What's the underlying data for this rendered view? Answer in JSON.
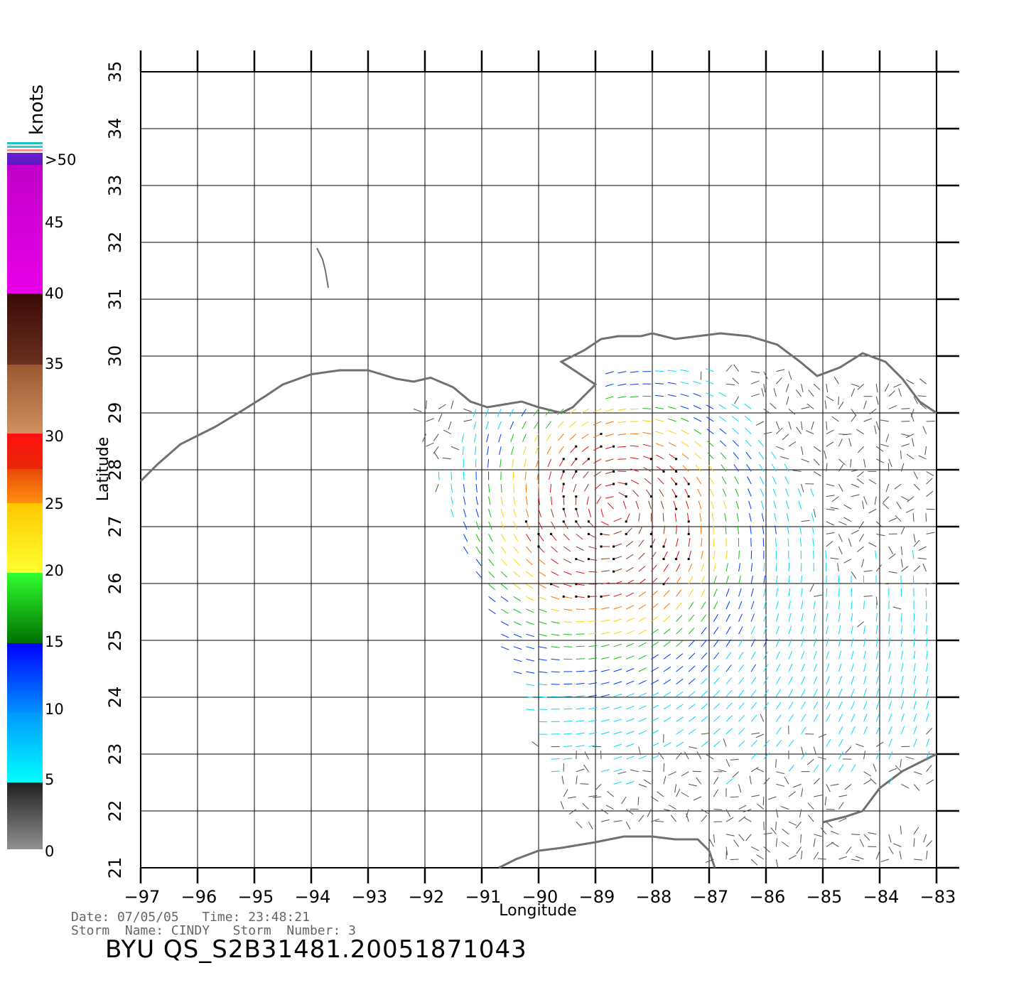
{
  "legend": {
    "unit": "knots",
    "labels": [
      ">50",
      "45",
      "40",
      "35",
      "30",
      "25",
      "20",
      "15",
      "10",
      "5",
      "0"
    ],
    "bands": [
      {
        "from": "#6a1fc8",
        "to": "#5a18c8"
      },
      {
        "from": "#c000c8",
        "to": "#e800e8"
      },
      {
        "from": "#3a0a06",
        "to": "#6a3020"
      },
      {
        "from": "#9a5830",
        "to": "#d09060"
      },
      {
        "from": "#ff1010",
        "to": "#e82808"
      },
      {
        "from": "#e84808",
        "to": "#ff9010"
      },
      {
        "from": "#ffc800",
        "to": "#ffff30"
      },
      {
        "from": "#30ff30",
        "to": "#007000"
      },
      {
        "from": "#0000ff",
        "to": "#0090ff"
      },
      {
        "from": "#0098ff",
        "to": "#00ffff"
      },
      {
        "from": "#202020",
        "to": "#909090"
      }
    ]
  },
  "axes": {
    "xlabel": "Longitude",
    "ylabel": "Latitude",
    "x_ticks": [
      "-97",
      "-96",
      "-95",
      "-94",
      "-93",
      "-92",
      "-91",
      "-90",
      "-89",
      "-88",
      "-87",
      "-86",
      "-85",
      "-84",
      "-83"
    ],
    "y_ticks": [
      "21",
      "22",
      "23",
      "24",
      "25",
      "26",
      "27",
      "28",
      "29",
      "30",
      "31",
      "32",
      "33",
      "34",
      "35"
    ],
    "lon_range": [
      -97,
      -83
    ],
    "lat_range": [
      21,
      35
    ],
    "grid": true
  },
  "footer": {
    "line1": "Date: 07/05/05   Time: 23:48:21",
    "line2": "Storm  Name: CINDY   Storm  Number: 3",
    "file_id": "BYU  QS_S2B31481.20051871043"
  },
  "storm_center": {
    "lon": -88.7,
    "lat": 27.3
  },
  "colors": {
    "coast": "#707070",
    "grid": "#000000",
    "speed_colors": [
      "#505050",
      "#00d8ff",
      "#0038ff",
      "#10c010",
      "#ffd000",
      "#ff7000",
      "#e01010",
      "#8b4020"
    ]
  }
}
